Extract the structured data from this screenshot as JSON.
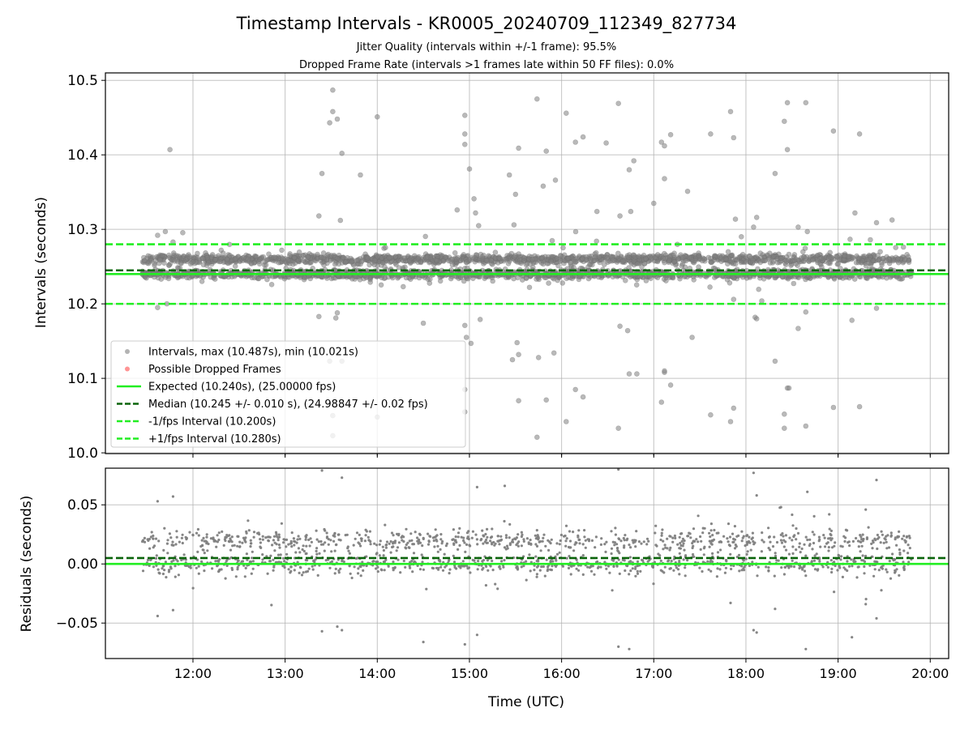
{
  "chart_data": [
    {
      "type": "scatter",
      "title": "Timestamp Intervals - KR0005_20240709_112349_827734",
      "subtitle_lines": [
        "Jitter Quality (intervals within +/-1 frame): 95.5%",
        "Dropped Frame Rate (intervals >1 frames late within 50 FF files): 0.0%"
      ],
      "xlabel": "",
      "ylabel": "Intervals (seconds)",
      "xlim": [
        "11:03",
        "20:12"
      ],
      "ylim": [
        9.999,
        10.51
      ],
      "x_ticks": [
        "12:00",
        "13:00",
        "14:00",
        "15:00",
        "16:00",
        "17:00",
        "18:00",
        "19:00",
        "20:00"
      ],
      "y_ticks": [
        "10.0",
        "10.1",
        "10.2",
        "10.3",
        "10.4",
        "10.5"
      ],
      "grid": true,
      "legend_position": "lower left",
      "x_range_data": [
        "11:27",
        "19:48"
      ],
      "series": [
        {
          "name": "Intervals, max (10.487s), min (10.021s)",
          "kind": "points",
          "color": "#808080",
          "max": 10.487,
          "min": 10.021,
          "main_band_values": [
            10.24,
            10.26
          ],
          "points": [
            [
              "11:45",
              10.407
            ],
            [
              "13:24",
              10.375
            ],
            [
              "13:22",
              10.318
            ],
            [
              "13:29",
              10.443
            ],
            [
              "13:31",
              10.458
            ],
            [
              "13:31",
              10.487
            ],
            [
              "13:34",
              10.448
            ],
            [
              "13:37",
              10.402
            ],
            [
              "13:36",
              10.312
            ],
            [
              "13:49",
              10.373
            ],
            [
              "14:00",
              10.451
            ],
            [
              "14:52",
              10.326
            ],
            [
              "14:57",
              10.453
            ],
            [
              "14:57",
              10.428
            ],
            [
              "14:57",
              10.414
            ],
            [
              "15:00",
              10.381
            ],
            [
              "15:03",
              10.341
            ],
            [
              "15:04",
              10.322
            ],
            [
              "15:06",
              10.305
            ],
            [
              "15:26",
              10.373
            ],
            [
              "15:29",
              10.306
            ],
            [
              "15:30",
              10.347
            ],
            [
              "15:32",
              10.409
            ],
            [
              "15:44",
              10.475
            ],
            [
              "15:48",
              10.358
            ],
            [
              "15:50",
              10.405
            ],
            [
              "15:56",
              10.366
            ],
            [
              "16:03",
              10.456
            ],
            [
              "16:09",
              10.417
            ],
            [
              "16:14",
              10.424
            ],
            [
              "16:23",
              10.324
            ],
            [
              "16:29",
              10.416
            ],
            [
              "16:37",
              10.469
            ],
            [
              "16:38",
              10.318
            ],
            [
              "16:44",
              10.38
            ],
            [
              "16:47",
              10.392
            ],
            [
              "16:45",
              10.324
            ],
            [
              "17:00",
              10.335
            ],
            [
              "17:05",
              10.417
            ],
            [
              "17:07",
              10.412
            ],
            [
              "17:07",
              10.368
            ],
            [
              "17:11",
              10.427
            ],
            [
              "17:22",
              10.351
            ],
            [
              "17:37",
              10.428
            ],
            [
              "17:50",
              10.458
            ],
            [
              "17:52",
              10.423
            ],
            [
              "18:05",
              10.303
            ],
            [
              "18:07",
              10.316
            ],
            [
              "18:19",
              10.375
            ],
            [
              "18:25",
              10.445
            ],
            [
              "18:27",
              10.47
            ],
            [
              "18:27",
              10.407
            ],
            [
              "18:34",
              10.303
            ],
            [
              "18:39",
              10.47
            ],
            [
              "18:57",
              10.432
            ],
            [
              "19:11",
              10.322
            ],
            [
              "19:14",
              10.428
            ],
            [
              "19:21",
              10.286
            ],
            [
              "19:25",
              10.309
            ],
            [
              "11:37",
              10.292
            ],
            [
              "11:42",
              10.297
            ],
            [
              "11:47",
              10.283
            ],
            [
              "17:57",
              10.29
            ],
            [
              "18:40",
              10.297
            ],
            [
              "13:22",
              10.183
            ],
            [
              "13:33",
              10.181
            ],
            [
              "13:34",
              10.188
            ],
            [
              "14:30",
              10.174
            ],
            [
              "14:57",
              10.171
            ],
            [
              "14:58",
              10.155
            ],
            [
              "15:01",
              10.147
            ],
            [
              "15:07",
              10.179
            ],
            [
              "15:28",
              10.125
            ],
            [
              "15:31",
              10.148
            ],
            [
              "15:32",
              10.132
            ],
            [
              "15:45",
              10.128
            ],
            [
              "15:55",
              10.134
            ],
            [
              "16:38",
              10.17
            ],
            [
              "16:43",
              10.164
            ],
            [
              "16:44",
              10.106
            ],
            [
              "16:49",
              10.106
            ],
            [
              "17:07",
              10.108
            ],
            [
              "17:07",
              10.11
            ],
            [
              "17:11",
              10.091
            ],
            [
              "17:25",
              10.155
            ],
            [
              "17:52",
              10.206
            ],
            [
              "18:06",
              10.182
            ],
            [
              "18:07",
              10.18
            ],
            [
              "18:19",
              10.123
            ],
            [
              "18:27",
              10.087
            ],
            [
              "18:28",
              10.087
            ],
            [
              "18:34",
              10.167
            ],
            [
              "18:39",
              10.189
            ],
            [
              "19:09",
              10.178
            ],
            [
              "19:25",
              10.194
            ],
            [
              "11:37",
              10.195
            ],
            [
              "11:43",
              10.2
            ],
            [
              "13:29",
              10.123
            ],
            [
              "13:31",
              10.05
            ],
            [
              "13:31",
              10.023
            ],
            [
              "13:37",
              10.123
            ],
            [
              "14:00",
              10.048
            ],
            [
              "14:57",
              10.085
            ],
            [
              "14:57",
              10.055
            ],
            [
              "15:32",
              10.07
            ],
            [
              "15:44",
              10.021
            ],
            [
              "15:50",
              10.071
            ],
            [
              "16:03",
              10.042
            ],
            [
              "16:09",
              10.085
            ],
            [
              "16:14",
              10.075
            ],
            [
              "16:37",
              10.033
            ],
            [
              "17:05",
              10.068
            ],
            [
              "17:37",
              10.051
            ],
            [
              "17:50",
              10.042
            ],
            [
              "17:52",
              10.06
            ],
            [
              "18:25",
              10.052
            ],
            [
              "18:25",
              10.033
            ],
            [
              "18:39",
              10.036
            ],
            [
              "18:57",
              10.061
            ],
            [
              "19:14",
              10.062
            ]
          ]
        },
        {
          "name": "Possible Dropped Frames",
          "kind": "points",
          "color": "#ff4d4d",
          "points": []
        },
        {
          "name": "Expected (10.240s), (25.00000 fps)",
          "kind": "hline",
          "value": 10.24,
          "color": "#22ee22",
          "style": "solid"
        },
        {
          "name": "Median (10.245 +/- 0.010 s), (24.98847 +/- 0.02 fps)",
          "kind": "hline",
          "value": 10.245,
          "color": "#0a640a",
          "style": "dashed"
        },
        {
          "name": "-1/fps Interval (10.200s)",
          "kind": "hline",
          "value": 10.2,
          "color": "#22ee22",
          "style": "dashed"
        },
        {
          "name": "+1/fps Interval (10.280s)",
          "kind": "hline",
          "value": 10.28,
          "color": "#22ee22",
          "style": "dashed"
        }
      ]
    },
    {
      "type": "scatter",
      "title": "",
      "xlabel": "Time (UTC)",
      "ylabel": "Residuals (seconds)",
      "xlim": [
        "11:03",
        "20:12"
      ],
      "ylim": [
        -0.08,
        0.081
      ],
      "x_ticks": [
        "12:00",
        "13:00",
        "14:00",
        "15:00",
        "16:00",
        "17:00",
        "18:00",
        "19:00",
        "20:00"
      ],
      "y_ticks": [
        "−0.05",
        "0.00",
        "0.05"
      ],
      "grid": true,
      "x_range_data": [
        "11:27",
        "19:48"
      ],
      "series": [
        {
          "kind": "points",
          "color": "#808080",
          "main_band_values": [
            0.0,
            0.02
          ],
          "points": [
            [
              "13:24",
              0.079
            ],
            [
              "13:37",
              0.073
            ],
            [
              "16:37",
              0.08
            ],
            [
              "18:05",
              0.077
            ],
            [
              "19:25",
              0.071
            ],
            [
              "15:05",
              0.065
            ],
            [
              "15:23",
              0.066
            ],
            [
              "11:47",
              0.057
            ],
            [
              "18:07",
              0.058
            ],
            [
              "18:40",
              0.061
            ],
            [
              "11:37",
              0.053
            ],
            [
              "19:18",
              0.046
            ],
            [
              "11:37",
              -0.044
            ],
            [
              "11:47",
              -0.039
            ],
            [
              "13:34",
              -0.053
            ],
            [
              "13:37",
              -0.056
            ],
            [
              "13:24",
              -0.057
            ],
            [
              "14:30",
              -0.066
            ],
            [
              "14:57",
              -0.068
            ],
            [
              "15:05",
              -0.06
            ],
            [
              "16:37",
              -0.07
            ],
            [
              "16:44",
              -0.072
            ],
            [
              "18:05",
              -0.056
            ],
            [
              "18:07",
              -0.058
            ],
            [
              "18:39",
              -0.072
            ],
            [
              "19:09",
              -0.062
            ],
            [
              "19:25",
              -0.046
            ],
            [
              "17:50",
              -0.033
            ],
            [
              "18:19",
              -0.038
            ],
            [
              "19:18",
              -0.034
            ]
          ]
        },
        {
          "name": "Expected",
          "kind": "hline",
          "value": 0.0,
          "color": "#22ee22",
          "style": "solid"
        },
        {
          "name": "Median",
          "kind": "hline",
          "value": 0.005,
          "color": "#0a640a",
          "style": "dashed"
        }
      ]
    }
  ]
}
